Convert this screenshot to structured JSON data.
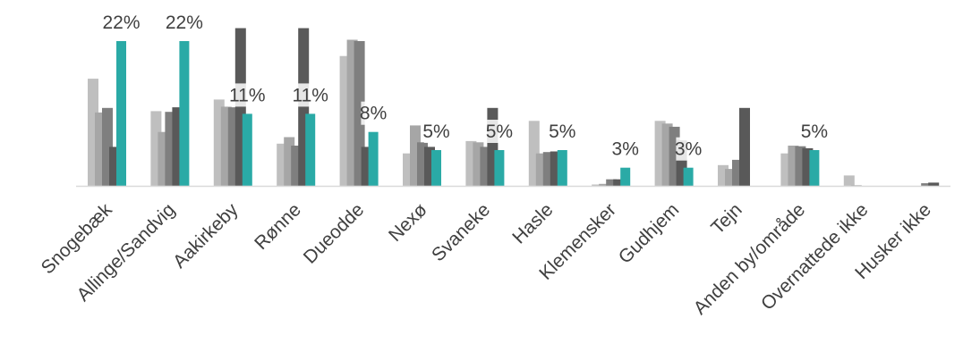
{
  "chart_data": {
    "type": "bar",
    "categories": [
      "Snogebæk",
      "Allinge/Sandvig",
      "Aakirkeby",
      "Rønne",
      "Dueodde",
      "Nexø",
      "Svaneke",
      "Hasle",
      "Klemensker",
      "Gudhjem",
      "Tejn",
      "Anden by/område",
      "Overnattede ikke",
      "Husker ikke"
    ],
    "series": [
      {
        "color": "#bfbfbf",
        "values": [
          16.5,
          11.5,
          13.3,
          6.5,
          20,
          5,
          6.9,
          10,
          0.2,
          10,
          3.2,
          5,
          1.6,
          0
        ]
      },
      {
        "color": "#a6a6a6",
        "values": [
          11.3,
          8.3,
          12.2,
          7.5,
          22.5,
          9.3,
          6.7,
          5,
          0.3,
          9.6,
          2.6,
          6.2,
          0.1,
          0
        ]
      },
      {
        "color": "#7f7f7f",
        "values": [
          12,
          11.4,
          12.1,
          6.2,
          22.3,
          6.7,
          6,
          5.2,
          1,
          9.1,
          4,
          6.1,
          0,
          0.4
        ]
      },
      {
        "color": "#595959",
        "values": [
          6,
          12.1,
          24.3,
          24.3,
          6,
          6,
          12,
          5.3,
          1,
          7,
          12,
          5.8,
          0,
          0.5
        ]
      },
      {
        "color": "#2aaaa6",
        "values": [
          22.3,
          22.3,
          11.1,
          11.1,
          8.3,
          5.5,
          5.5,
          5.5,
          2.8,
          2.8,
          0,
          5.5,
          0,
          0
        ]
      }
    ],
    "data_labels": [
      "22%",
      "22%",
      "11%",
      "11%",
      "8%",
      "5%",
      "5%",
      "5%",
      "3%",
      "3%",
      "",
      "5%",
      "",
      ""
    ],
    "title": "",
    "xlabel": "",
    "ylabel": "",
    "ylim": [
      0,
      24.5
    ],
    "grid": false,
    "legend": "none"
  }
}
